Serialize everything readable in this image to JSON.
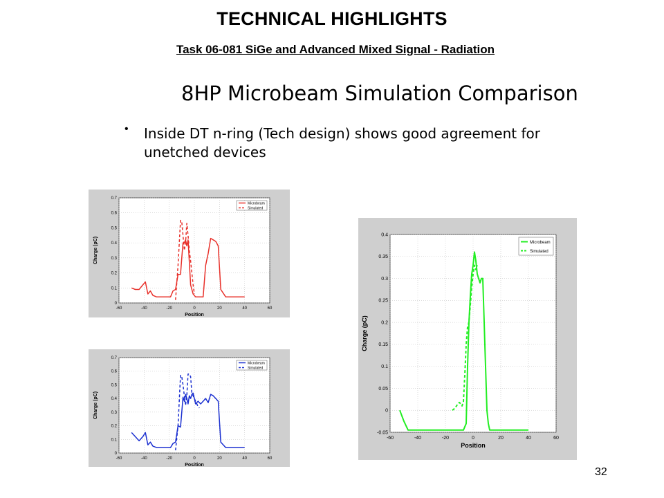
{
  "header": {
    "title": "TECHNICAL HIGHLIGHTS",
    "subtitle": "Task 06-081 SiGe and Advanced Mixed Signal - Radiation"
  },
  "slide": {
    "heading": "8HP Microbeam Simulation Comparison",
    "bullet_marker": "•",
    "bullet": "Inside DT n-ring (Tech design) shows good agreement for unetched devices"
  },
  "page_number": "32",
  "chart_data": [
    {
      "type": "line",
      "xlabel": "Position",
      "ylabel": "Charge (pC)",
      "xlim": [
        -60,
        60
      ],
      "ylim": [
        0,
        0.7
      ],
      "xticks": [
        -60,
        -40,
        -20,
        0,
        20,
        40,
        60
      ],
      "yticks": [
        0,
        0.1,
        0.2,
        0.3,
        0.4,
        0.5,
        0.6,
        0.7
      ],
      "grid": true,
      "legend": "top-right",
      "color": "#e8302a",
      "series": [
        {
          "name": "Microbeam",
          "style": "solid",
          "x": [
            -50,
            -47,
            -44,
            -41,
            -39,
            -37,
            -35,
            -33,
            -30,
            -27,
            -25,
            -23,
            -21,
            -19,
            -17,
            -15,
            -13,
            -11,
            -10,
            -9,
            -8,
            -7,
            -6,
            -5,
            -3,
            -1,
            1,
            3,
            5,
            7,
            9,
            11,
            13,
            15,
            17,
            19,
            21,
            25,
            30,
            35,
            40
          ],
          "y": [
            0.1,
            0.09,
            0.09,
            0.12,
            0.14,
            0.06,
            0.08,
            0.05,
            0.04,
            0.04,
            0.04,
            0.04,
            0.04,
            0.04,
            0.08,
            0.09,
            0.19,
            0.19,
            0.3,
            0.4,
            0.4,
            0.42,
            0.38,
            0.42,
            0.12,
            0.06,
            0.04,
            0.04,
            0.04,
            0.04,
            0.25,
            0.33,
            0.43,
            0.42,
            0.41,
            0.38,
            0.09,
            0.04,
            0.04,
            0.04,
            0.04
          ]
        },
        {
          "name": "Simulated",
          "style": "dashed",
          "x": [
            -15,
            -13,
            -11,
            -10,
            -9,
            -8,
            -7,
            -6,
            -5,
            -4,
            -3,
            -2,
            -1,
            0
          ],
          "y": [
            0.02,
            0.25,
            0.55,
            0.54,
            0.45,
            0.35,
            0.4,
            0.53,
            0.45,
            0.35,
            0.28,
            0.2,
            0.12,
            0.06
          ]
        }
      ]
    },
    {
      "type": "line",
      "xlabel": "Position",
      "ylabel": "Charge (pC)",
      "xlim": [
        -60,
        60
      ],
      "ylim": [
        0,
        0.7
      ],
      "xticks": [
        -60,
        -40,
        -20,
        0,
        20,
        40,
        60
      ],
      "yticks": [
        0,
        0.1,
        0.2,
        0.3,
        0.4,
        0.5,
        0.6,
        0.7
      ],
      "grid": true,
      "legend": "top-right",
      "color": "#1a2fd0",
      "series": [
        {
          "name": "Microbeam",
          "style": "solid",
          "x": [
            -50,
            -47,
            -44,
            -41,
            -39,
            -37,
            -35,
            -33,
            -30,
            -27,
            -25,
            -23,
            -21,
            -19,
            -17,
            -15,
            -13,
            -11,
            -10,
            -9,
            -8,
            -7,
            -6,
            -5,
            -4,
            -3,
            -2,
            -1,
            1,
            3,
            5,
            7,
            9,
            11,
            13,
            15,
            17,
            19,
            21,
            25,
            30,
            35,
            40
          ],
          "y": [
            0.15,
            0.12,
            0.09,
            0.12,
            0.15,
            0.06,
            0.08,
            0.05,
            0.04,
            0.04,
            0.04,
            0.04,
            0.04,
            0.04,
            0.07,
            0.08,
            0.2,
            0.19,
            0.3,
            0.41,
            0.38,
            0.43,
            0.4,
            0.36,
            0.42,
            0.4,
            0.43,
            0.44,
            0.36,
            0.38,
            0.36,
            0.38,
            0.4,
            0.37,
            0.43,
            0.42,
            0.4,
            0.38,
            0.08,
            0.04,
            0.04,
            0.04,
            0.04
          ]
        },
        {
          "name": "Simulated",
          "style": "dashed",
          "x": [
            -15,
            -13,
            -11,
            -10,
            -9,
            -8,
            -7,
            -6,
            -5,
            -4,
            -3,
            -2,
            -1,
            0,
            1,
            2,
            3,
            4
          ],
          "y": [
            0.02,
            0.2,
            0.57,
            0.56,
            0.5,
            0.42,
            0.35,
            0.42,
            0.58,
            0.58,
            0.56,
            0.44,
            0.42,
            0.4,
            0.38,
            0.36,
            0.34,
            0.33
          ]
        }
      ]
    },
    {
      "type": "line",
      "xlabel": "Position",
      "ylabel": "Charge (pC)",
      "xlim": [
        -60,
        60
      ],
      "ylim": [
        -0.05,
        0.4
      ],
      "xticks": [
        -60,
        -40,
        -20,
        0,
        20,
        40,
        60
      ],
      "yticks": [
        -0.05,
        0,
        0.05,
        0.1,
        0.15,
        0.2,
        0.25,
        0.3,
        0.35,
        0.4
      ],
      "grid": true,
      "legend": "top-right",
      "color": "#22ee22",
      "series": [
        {
          "name": "Microbeam",
          "style": "solid",
          "x": [
            -53,
            -50,
            -47,
            -44,
            -40,
            -35,
            -30,
            -25,
            -20,
            -15,
            -10,
            -7,
            -5,
            -4,
            -3,
            -2,
            -1,
            0,
            1,
            2,
            3,
            4,
            5,
            6,
            7,
            8,
            9,
            10,
            11,
            12,
            13,
            15,
            20,
            30,
            40
          ],
          "y": [
            0.0,
            -0.025,
            -0.045,
            -0.045,
            -0.045,
            -0.045,
            -0.045,
            -0.045,
            -0.045,
            -0.045,
            -0.045,
            -0.045,
            -0.03,
            0.1,
            0.2,
            0.26,
            0.31,
            0.33,
            0.36,
            0.34,
            0.31,
            0.3,
            0.29,
            0.3,
            0.3,
            0.2,
            0.1,
            0.0,
            -0.03,
            -0.045,
            -0.045,
            -0.045,
            -0.045,
            -0.045,
            -0.045
          ]
        },
        {
          "name": "Simulated",
          "style": "dashed",
          "x": [
            -15,
            -13,
            -11,
            -10,
            -9,
            -8,
            -7,
            -6,
            -5,
            -4,
            -3,
            -2,
            -1,
            0,
            1,
            2,
            3
          ],
          "y": [
            0.0,
            0.005,
            0.015,
            0.018,
            0.015,
            0.01,
            0.02,
            0.08,
            0.15,
            0.19,
            0.2,
            0.24,
            0.28,
            0.31,
            0.33,
            0.32,
            0.33
          ]
        }
      ]
    }
  ]
}
